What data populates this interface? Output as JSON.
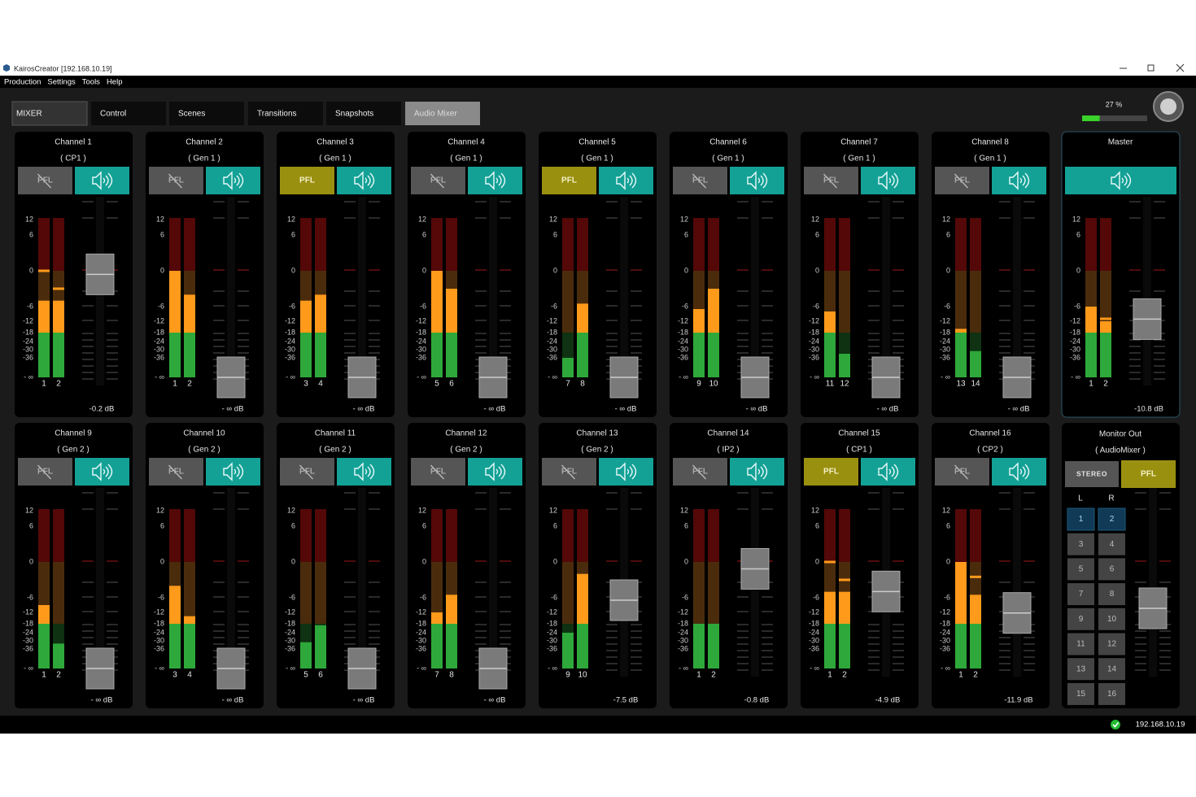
{
  "window": {
    "title": "KairosCreator [192.168.10.19]"
  },
  "menu": [
    "Production",
    "Settings",
    "Tools",
    "Help"
  ],
  "tabs": [
    "MIXER",
    "Control",
    "Scenes",
    "Transitions",
    "Snapshots",
    "Audio Mixer"
  ],
  "active_tab": 5,
  "load": {
    "value": 27,
    "label": "27 %"
  },
  "pfl_label": "PFL",
  "meter_scale": [
    12,
    6,
    0,
    -6,
    -12,
    -18,
    -24,
    -30,
    -36,
    {
      "value": null,
      "label": "- ∞"
    }
  ],
  "strips": [
    {
      "name": "Channel 1",
      "source": "( CP1 )",
      "pfl": false,
      "inputs": [
        1,
        2
      ],
      "levels": [
        -5,
        -5
      ],
      "peaks": [
        0,
        -3
      ],
      "fader_db": -0.2,
      "gain_label": "-0.2 dB"
    },
    {
      "name": "Channel 2",
      "source": "( Gen 1 )",
      "pfl": false,
      "inputs": [
        1,
        2
      ],
      "levels": [
        0,
        -4
      ],
      "fader_db": null,
      "gain_label": "- ∞ dB"
    },
    {
      "name": "Channel 3",
      "source": "( Gen 1 )",
      "pfl": true,
      "inputs": [
        3,
        4
      ],
      "levels": [
        -5,
        -4
      ],
      "fader_db": null,
      "gain_label": "- ∞ dB"
    },
    {
      "name": "Channel 4",
      "source": "( Gen 1 )",
      "pfl": false,
      "inputs": [
        5,
        6
      ],
      "levels": [
        0,
        -3
      ],
      "fader_db": null,
      "gain_label": "- ∞ dB"
    },
    {
      "name": "Channel 5",
      "source": "( Gen 1 )",
      "pfl": true,
      "inputs": [
        7,
        8
      ],
      "levels": [
        -36,
        -5.5
      ],
      "fader_db": null,
      "gain_label": "- ∞ dB"
    },
    {
      "name": "Channel 6",
      "source": "( Gen 1 )",
      "pfl": false,
      "inputs": [
        9,
        10
      ],
      "levels": [
        -7,
        -3
      ],
      "fader_db": null,
      "gain_label": "- ∞ dB"
    },
    {
      "name": "Channel 7",
      "source": "( Gen 1 )",
      "pfl": false,
      "inputs": [
        11,
        12
      ],
      "levels": [
        -8,
        -33
      ],
      "fader_db": null,
      "gain_label": "- ∞ dB"
    },
    {
      "name": "Channel 8",
      "source": "( Gen 1 )",
      "pfl": false,
      "inputs": [
        13,
        14
      ],
      "levels": [
        -16,
        -31
      ],
      "fader_db": null,
      "gain_label": "- ∞ dB"
    },
    {
      "name": "Channel 9",
      "source": "( Gen 2 )",
      "pfl": false,
      "inputs": [
        1,
        2
      ],
      "levels": [
        -9,
        -32
      ],
      "fader_db": null,
      "gain_label": "- ∞ dB"
    },
    {
      "name": "Channel 10",
      "source": "( Gen 2 )",
      "pfl": false,
      "inputs": [
        3,
        4
      ],
      "levels": [
        -4,
        -14
      ],
      "fader_db": null,
      "gain_label": "- ∞ dB"
    },
    {
      "name": "Channel 11",
      "source": "( Gen 2 )",
      "pfl": false,
      "inputs": [
        5,
        6
      ],
      "levels": [
        -31,
        -19
      ],
      "fader_db": null,
      "gain_label": "- ∞ dB"
    },
    {
      "name": "Channel 12",
      "source": "( Gen 2 )",
      "pfl": false,
      "inputs": [
        7,
        8
      ],
      "levels": [
        -12,
        -5.5
      ],
      "fader_db": null,
      "gain_label": "- ∞ dB"
    },
    {
      "name": "Channel 13",
      "source": "( Gen 2 )",
      "pfl": false,
      "inputs": [
        9,
        10
      ],
      "levels": [
        -24,
        -2
      ],
      "fader_db": -7.5,
      "gain_label": "-7.5 dB"
    },
    {
      "name": "Channel 14",
      "source": "( IP2 )",
      "pfl": false,
      "inputs": [
        1,
        2
      ],
      "levels": [
        -18,
        -18
      ],
      "fader_db": -0.8,
      "gain_label": "-0.8 dB"
    },
    {
      "name": "Channel 15",
      "source": "( CP1 )",
      "pfl": true,
      "inputs": [
        1,
        2
      ],
      "levels": [
        -5,
        -5
      ],
      "peaks": [
        0,
        -3
      ],
      "fader_db": -4.9,
      "gain_label": "-4.9 dB"
    },
    {
      "name": "Channel 16",
      "source": "( CP2 )",
      "pfl": false,
      "inputs": [
        1,
        2
      ],
      "levels": [
        0,
        -5.5
      ],
      "peaks": [
        null,
        -2.5
      ],
      "fader_db": -11.9,
      "gain_label": "-11.9 dB"
    }
  ],
  "master": {
    "name": "Master",
    "inputs": [
      1,
      2
    ],
    "levels": [
      -7,
      -12
    ],
    "peaks": [
      -6.5,
      -11
    ],
    "fader_db": -10.8,
    "gain_label": "-10.8 dB"
  },
  "monitor": {
    "name": "Monitor Out",
    "source": "( AudioMixer )",
    "stereo": "STEREO",
    "pfl": true,
    "columns": [
      "L",
      "R"
    ],
    "outputs": [
      1,
      2,
      3,
      4,
      5,
      6,
      7,
      8,
      9,
      10,
      11,
      12,
      13,
      14,
      15,
      16
    ],
    "selected": [
      0,
      1
    ],
    "fader_db": -10
  },
  "status": {
    "ip": "192.168.10.19"
  }
}
